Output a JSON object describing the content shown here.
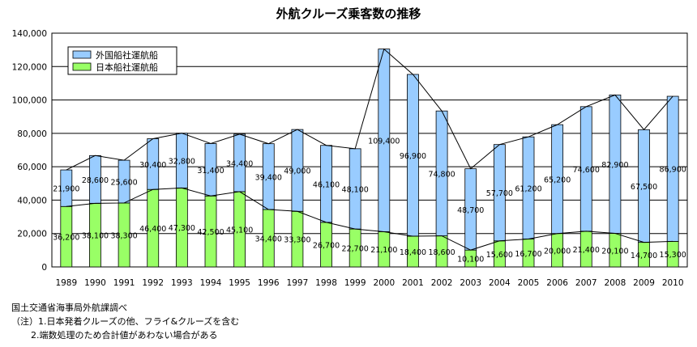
{
  "chart_data": {
    "type": "bar",
    "stacked": true,
    "title": "外航クルーズ乗客数の推移",
    "categories": [
      "1989",
      "1990",
      "1991",
      "1992",
      "1993",
      "1994",
      "1995",
      "1996",
      "1997",
      "1998",
      "1999",
      "2000",
      "2001",
      "2002",
      "2003",
      "2004",
      "2005",
      "2006",
      "2007",
      "2008",
      "2009",
      "2010"
    ],
    "series": [
      {
        "name": "日本船社運航船",
        "color": "#99ff66",
        "values": [
          36200,
          38100,
          38300,
          46400,
          47300,
          42500,
          45100,
          34400,
          33300,
          26700,
          22700,
          21100,
          18400,
          18600,
          10100,
          15600,
          16700,
          20000,
          21400,
          20100,
          14700,
          15300
        ],
        "labels": [
          "36,200",
          "38,100",
          "38,300",
          "46,400",
          "47,300",
          "42,500",
          "45,100",
          "34,400",
          "33,300",
          "26,700",
          "22,700",
          "21,100",
          "18,400",
          "18,600",
          "10,100",
          "15,600",
          "16,700",
          "20,000",
          "21,400",
          "20,100",
          "14,700",
          "15,300"
        ]
      },
      {
        "name": "外国船社運航船",
        "color": "#99ccff",
        "values": [
          21900,
          28600,
          25600,
          30400,
          32800,
          31400,
          34400,
          39400,
          49000,
          46100,
          48100,
          109400,
          96900,
          74800,
          48700,
          57700,
          61200,
          65200,
          74600,
          82900,
          67500,
          86900
        ],
        "labels": [
          "21,900",
          "28,600",
          "25,600",
          "30,400",
          "32,800",
          "31,400",
          "34,400",
          "39,400",
          "49,000",
          "46,100",
          "48,100",
          "109,400",
          "96,900",
          "74,800",
          "48,700",
          "57,700",
          "61,200",
          "65,200",
          "74,600",
          "82,900",
          "67,500",
          "86,900"
        ]
      }
    ],
    "ylim": [
      0,
      140000
    ],
    "yticks": [
      "0",
      "20,000",
      "40,000",
      "60,000",
      "80,000",
      "100,000",
      "120,000",
      "140,000"
    ],
    "grid": true,
    "legend_position": "top-left"
  },
  "notes": [
    "国土交通省海事局外航課調べ",
    "（注）1.日本発着クルーズの他、フライ&クルーズを含む",
    "2.端数処理のため合計値があわない場合がある"
  ]
}
